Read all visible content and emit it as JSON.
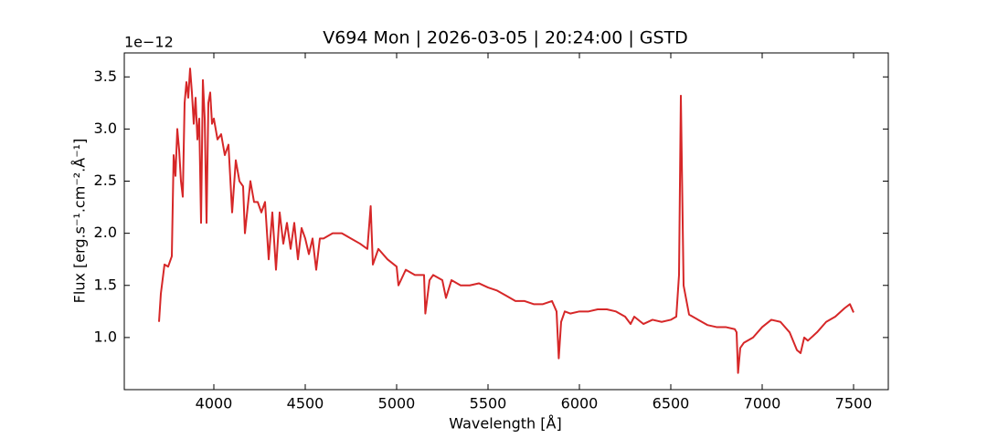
{
  "chart_data": {
    "type": "line",
    "title": "V694 Mon | 2026-03-05 | 20:24:00 | GSTD",
    "x_label": "Wavelength [Å]",
    "y_label": "Flux [erg.s⁻¹.cm⁻².Å⁻¹]",
    "y_offset_label": "1e−12",
    "color": "#d62728",
    "x": [
      3700,
      3710,
      3730,
      3750,
      3770,
      3780,
      3790,
      3800,
      3810,
      3820,
      3830,
      3840,
      3850,
      3860,
      3870,
      3880,
      3890,
      3900,
      3910,
      3920,
      3930,
      3940,
      3950,
      3960,
      3970,
      3980,
      3990,
      4000,
      4020,
      4040,
      4060,
      4080,
      4100,
      4120,
      4140,
      4160,
      4170,
      4200,
      4220,
      4240,
      4260,
      4280,
      4300,
      4320,
      4340,
      4360,
      4380,
      4400,
      4420,
      4440,
      4460,
      4480,
      4500,
      4520,
      4540,
      4560,
      4580,
      4600,
      4650,
      4700,
      4750,
      4800,
      4840,
      4858,
      4870,
      4900,
      4950,
      5000,
      5010,
      5050,
      5100,
      5150,
      5157,
      5180,
      5200,
      5250,
      5270,
      5300,
      5350,
      5400,
      5450,
      5500,
      5550,
      5600,
      5650,
      5700,
      5750,
      5800,
      5850,
      5875,
      5887,
      5900,
      5920,
      5950,
      6000,
      6050,
      6100,
      6150,
      6200,
      6250,
      6280,
      6300,
      6350,
      6400,
      6450,
      6500,
      6530,
      6545,
      6555,
      6570,
      6600,
      6650,
      6700,
      6750,
      6800,
      6850,
      6860,
      6868,
      6880,
      6900,
      6950,
      7000,
      7050,
      7100,
      7150,
      7190,
      7210,
      7230,
      7250,
      7300,
      7350,
      7400,
      7450,
      7480,
      7500
    ],
    "values": [
      1.15,
      1.42,
      1.7,
      1.68,
      1.78,
      2.75,
      2.55,
      3.0,
      2.8,
      2.5,
      2.35,
      3.25,
      3.45,
      3.3,
      3.58,
      3.35,
      3.05,
      3.3,
      2.9,
      3.1,
      2.1,
      3.47,
      3.1,
      2.1,
      3.25,
      3.35,
      3.05,
      3.1,
      2.9,
      2.95,
      2.75,
      2.85,
      2.2,
      2.7,
      2.5,
      2.45,
      2.0,
      2.5,
      2.3,
      2.3,
      2.2,
      2.3,
      1.75,
      2.2,
      1.65,
      2.2,
      1.9,
      2.1,
      1.85,
      2.1,
      1.75,
      2.05,
      1.95,
      1.8,
      1.95,
      1.65,
      1.95,
      1.95,
      2.0,
      2.0,
      1.95,
      1.9,
      1.85,
      2.26,
      1.7,
      1.85,
      1.75,
      1.68,
      1.5,
      1.65,
      1.6,
      1.6,
      1.23,
      1.55,
      1.6,
      1.55,
      1.38,
      1.55,
      1.5,
      1.5,
      1.52,
      1.48,
      1.45,
      1.4,
      1.35,
      1.35,
      1.32,
      1.32,
      1.35,
      1.25,
      0.8,
      1.15,
      1.25,
      1.23,
      1.25,
      1.25,
      1.27,
      1.27,
      1.25,
      1.2,
      1.13,
      1.2,
      1.13,
      1.17,
      1.15,
      1.17,
      1.2,
      1.6,
      3.32,
      1.5,
      1.22,
      1.17,
      1.12,
      1.1,
      1.1,
      1.08,
      1.05,
      0.66,
      0.9,
      0.95,
      1.0,
      1.1,
      1.17,
      1.15,
      1.05,
      0.88,
      0.85,
      1.0,
      0.97,
      1.05,
      1.15,
      1.2,
      1.28,
      1.32,
      1.24
    ],
    "xlim": [
      3510,
      7690
    ],
    "ylim": [
      0.5,
      3.73
    ],
    "xticks": [
      4000,
      4500,
      5000,
      5500,
      6000,
      6500,
      7000,
      7500
    ],
    "yticks": [
      {
        "value": 1,
        "label": "1.0"
      },
      {
        "value": 1.5,
        "label": "1.5"
      },
      {
        "value": 2,
        "label": "2.0"
      },
      {
        "value": 2.5,
        "label": "2.5"
      },
      {
        "value": 3,
        "label": "3.0"
      },
      {
        "value": 3.5,
        "label": "3.5"
      }
    ],
    "grid": false
  }
}
